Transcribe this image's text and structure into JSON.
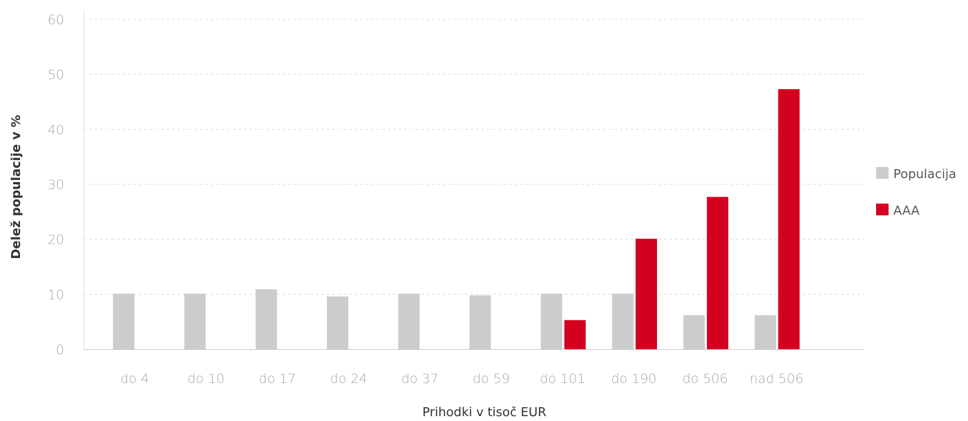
{
  "chart_data": {
    "type": "bar",
    "title": "",
    "xlabel": "Prihodki v tisoč EUR",
    "ylabel": "Delež populacije v %",
    "ylim": [
      0,
      60
    ],
    "yticks": [
      "0",
      "10",
      "20",
      "30",
      "40",
      "50",
      "60"
    ],
    "categories": [
      "do 4",
      "do 10",
      "do 17",
      "do 24",
      "do 37",
      "do 59",
      "do 101",
      "do 190",
      "do 506",
      "nad 506"
    ],
    "series": [
      {
        "name": "Populacija",
        "color": "#cccccc",
        "values": [
          10.1,
          10.1,
          10.9,
          9.6,
          10.1,
          9.8,
          10.1,
          10.1,
          6.2,
          6.2
        ]
      },
      {
        "name": "AAA",
        "color": "#d40020",
        "values": [
          0,
          0,
          0,
          0,
          0,
          0,
          5.3,
          20.1,
          27.7,
          47.3
        ]
      }
    ],
    "grid": true,
    "legend_position": "right"
  }
}
